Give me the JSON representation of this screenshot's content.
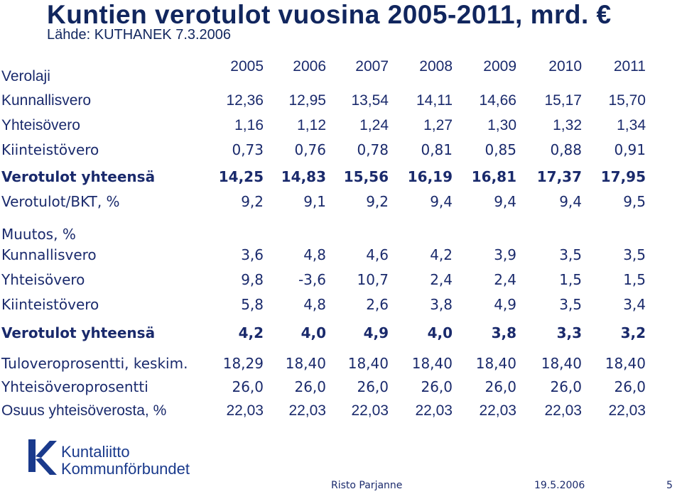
{
  "title": "Kuntien verotulot vuosina 2005-2011, mrd. €",
  "source": "Lähde: KUTHANEK 7.3.2006",
  "header": {
    "label": "Verolaji",
    "years": [
      "2005",
      "2006",
      "2007",
      "2008",
      "2009",
      "2010",
      "2011"
    ]
  },
  "rows": [
    {
      "label": "Kunnallisvero",
      "values": [
        "12,36",
        "12,95",
        "13,54",
        "14,11",
        "14,66",
        "15,17",
        "15,70"
      ]
    },
    {
      "label": "Yhteisövero",
      "values": [
        "1,16",
        "1,12",
        "1,24",
        "1,27",
        "1,30",
        "1,32",
        "1,34"
      ]
    },
    {
      "label": "Kiinteistövero",
      "values": [
        "0,73",
        "0,76",
        "0,78",
        "0,81",
        "0,85",
        "0,88",
        "0,91"
      ]
    },
    {
      "label": "Verotulot yhteensä",
      "values": [
        "14,25",
        "14,83",
        "15,56",
        "16,19",
        "16,81",
        "17,37",
        "17,95"
      ]
    },
    {
      "label": "Verotulot/BKT, %",
      "values": [
        "9,2",
        "9,1",
        "9,2",
        "9,4",
        "9,4",
        "9,4",
        "9,5"
      ]
    },
    {
      "label": "Muutos, %"
    },
    {
      "label": "Kunnallisvero",
      "values": [
        "3,6",
        "4,8",
        "4,6",
        "4,2",
        "3,9",
        "3,5",
        "3,5"
      ]
    },
    {
      "label": "Yhteisövero",
      "values": [
        "9,8",
        "-3,6",
        "10,7",
        "2,4",
        "2,4",
        "1,5",
        "1,5"
      ]
    },
    {
      "label": "Kiinteistövero",
      "values": [
        "5,8",
        "4,8",
        "2,6",
        "3,8",
        "4,9",
        "3,5",
        "3,4"
      ]
    },
    {
      "label": "Verotulot yhteensä",
      "values": [
        "4,2",
        "4,0",
        "4,9",
        "4,0",
        "3,8",
        "3,3",
        "3,2"
      ]
    },
    {
      "label": "Tuloveroprosentti, keskim.",
      "values": [
        "18,29",
        "18,40",
        "18,40",
        "18,40",
        "18,40",
        "18,40",
        "18,40"
      ]
    },
    {
      "label": "Yhteisöveroprosentti",
      "values": [
        "26,0",
        "26,0",
        "26,0",
        "26,0",
        "26,0",
        "26,0",
        "26,0"
      ]
    },
    {
      "label": "Osuus yhteisöverosta, %",
      "values": [
        "22,03",
        "22,03",
        "22,03",
        "22,03",
        "22,03",
        "22,03",
        "22,03"
      ]
    }
  ],
  "logo": {
    "line1": "Kuntaliitto",
    "line2": "Kommunförbundet",
    "color": "#1a3a8c"
  },
  "footer": {
    "author": "Risto Parjanne",
    "date": "19.5.2006",
    "page": "5"
  }
}
